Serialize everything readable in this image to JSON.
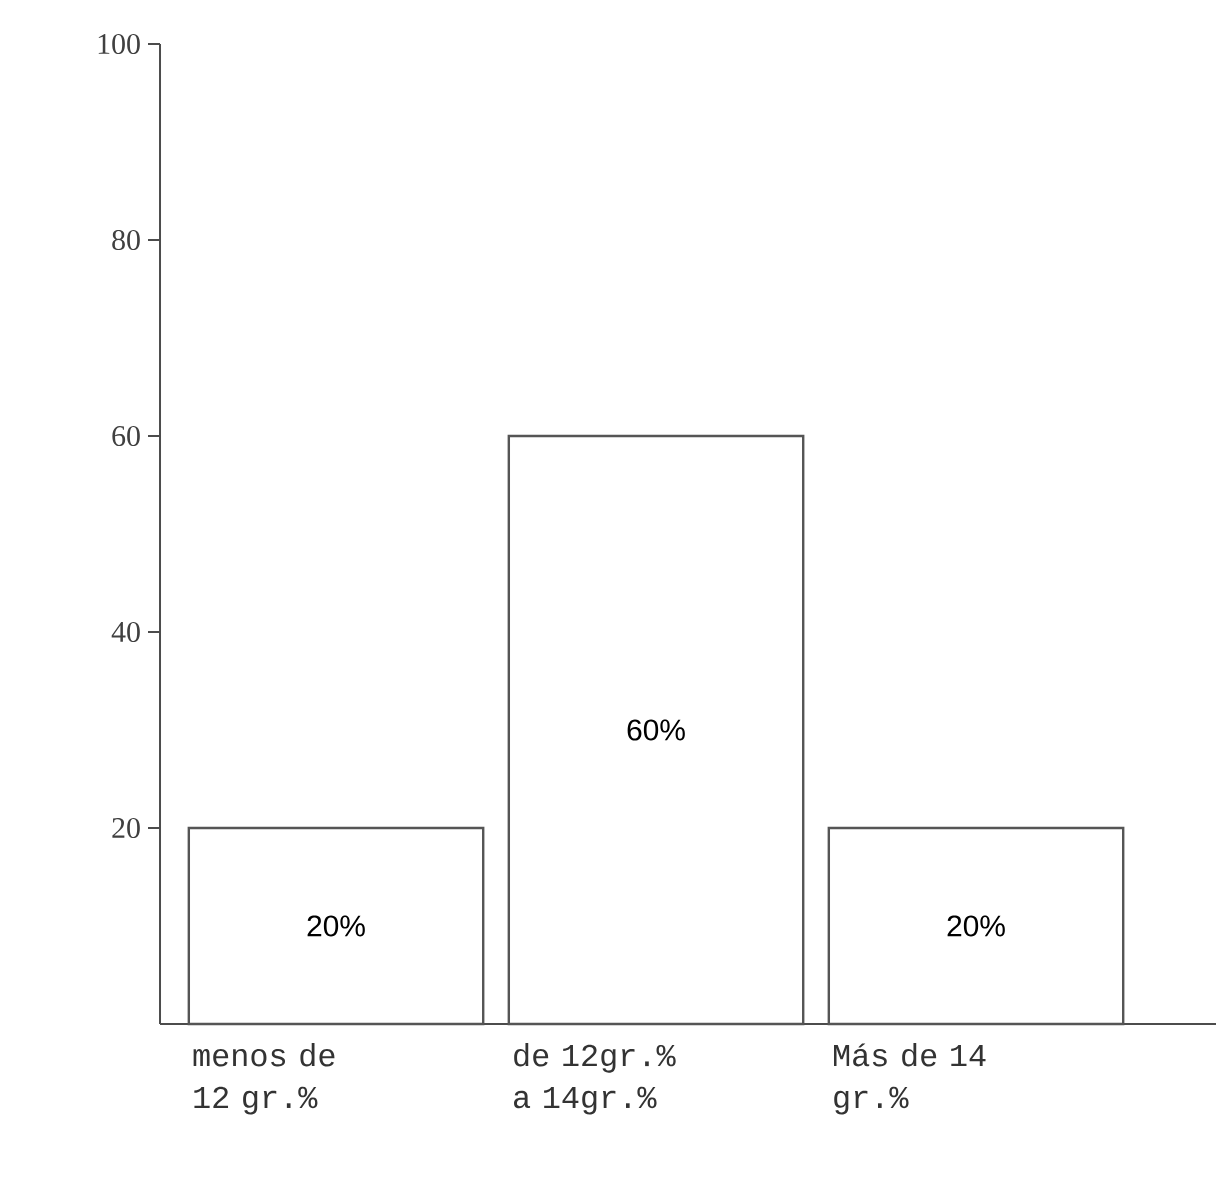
{
  "chart_data": {
    "type": "bar",
    "categories": [
      "menos de 12 gr.%",
      "de 12gr.% a 14gr.%",
      "Más de 14 gr.%"
    ],
    "values": [
      20,
      60,
      20
    ],
    "value_labels": [
      "20%",
      "60%",
      "20%"
    ],
    "color": "#555555",
    "ylim": [
      0,
      100
    ],
    "yticks": [
      20,
      40,
      60,
      80,
      100
    ]
  }
}
